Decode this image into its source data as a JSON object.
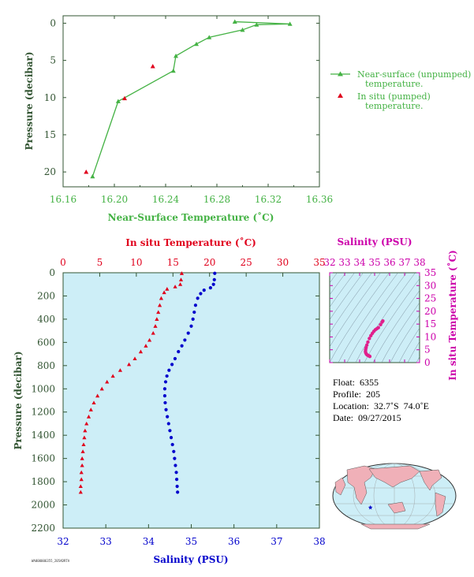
{
  "colors": {
    "green": "#44b244",
    "red": "#e0001c",
    "blue": "#0000cc",
    "magenta": "#cc00aa",
    "axis_text": "#335533",
    "panel_bg": "#cdeef7",
    "land": "#f0b0b8"
  },
  "chart_data": [
    {
      "id": "near-surface",
      "type": "scatter",
      "xlabel": "Near-Surface Temperature (˚C)",
      "ylabel": "Pressure (decibar)",
      "xlim": [
        16.16,
        16.36
      ],
      "ylim": [
        22,
        -1
      ],
      "xticks": [
        "16.16",
        "16.20",
        "16.24",
        "16.28",
        "16.32",
        "16.36"
      ],
      "yticks": [
        "0",
        "5",
        "10",
        "15",
        "20"
      ],
      "series": [
        {
          "name": "Near-surface (unpumped) temperature.",
          "style": "line+triangle",
          "color": "green",
          "points": [
            [
              16.294,
              -0.2
            ],
            [
              16.337,
              0.1
            ],
            [
              16.311,
              0.2
            ],
            [
              16.3,
              0.9
            ],
            [
              16.274,
              1.9
            ],
            [
              16.264,
              2.8
            ],
            [
              16.248,
              4.4
            ],
            [
              16.246,
              6.4
            ],
            [
              16.203,
              10.5
            ],
            [
              16.183,
              20.6
            ]
          ]
        },
        {
          "name": "In situ (pumped) temperature.",
          "style": "triangle",
          "color": "red",
          "points": [
            [
              16.23,
              5.8
            ],
            [
              16.208,
              10.1
            ],
            [
              16.178,
              20.0
            ]
          ]
        }
      ],
      "legend_position": "right"
    },
    {
      "id": "profile",
      "type": "scatter",
      "xlabel": "Salinity (PSU)",
      "x2label": "In situ Temperature (˚C)",
      "ylabel": "Pressure (decibar)",
      "xlim": [
        32,
        38
      ],
      "x2lim": [
        0,
        35
      ],
      "ylim": [
        2200,
        0
      ],
      "xticks": [
        "32",
        "33",
        "34",
        "35",
        "36",
        "37",
        "38"
      ],
      "x2ticks": [
        "0",
        "5",
        "10",
        "15",
        "20",
        "25",
        "30",
        "35"
      ],
      "yticks": [
        "0",
        "200",
        "400",
        "600",
        "800",
        "1000",
        "1200",
        "1400",
        "1600",
        "1800",
        "2000",
        "2200"
      ],
      "temperature": [
        [
          16.2,
          5
        ],
        [
          16.1,
          60
        ],
        [
          16.0,
          100
        ],
        [
          15.3,
          120
        ],
        [
          14.2,
          140
        ],
        [
          13.8,
          170
        ],
        [
          13.4,
          220
        ],
        [
          13.2,
          280
        ],
        [
          13.0,
          340
        ],
        [
          12.8,
          400
        ],
        [
          12.6,
          460
        ],
        [
          12.3,
          520
        ],
        [
          11.8,
          580
        ],
        [
          11.3,
          630
        ],
        [
          10.6,
          680
        ],
        [
          9.8,
          740
        ],
        [
          9.0,
          790
        ],
        [
          7.8,
          840
        ],
        [
          6.8,
          890
        ],
        [
          6.0,
          940
        ],
        [
          5.3,
          1000
        ],
        [
          4.7,
          1060
        ],
        [
          4.2,
          1120
        ],
        [
          3.8,
          1180
        ],
        [
          3.5,
          1240
        ],
        [
          3.2,
          1300
        ],
        [
          3.0,
          1360
        ],
        [
          2.9,
          1420
        ],
        [
          2.8,
          1480
        ],
        [
          2.7,
          1540
        ],
        [
          2.6,
          1600
        ],
        [
          2.6,
          1660
        ],
        [
          2.5,
          1720
        ],
        [
          2.5,
          1780
        ],
        [
          2.4,
          1840
        ],
        [
          2.4,
          1890
        ]
      ],
      "salinity": [
        [
          35.55,
          5
        ],
        [
          35.54,
          60
        ],
        [
          35.52,
          100
        ],
        [
          35.45,
          130
        ],
        [
          35.3,
          150
        ],
        [
          35.22,
          180
        ],
        [
          35.15,
          220
        ],
        [
          35.1,
          280
        ],
        [
          35.07,
          340
        ],
        [
          35.04,
          400
        ],
        [
          35.0,
          460
        ],
        [
          34.93,
          520
        ],
        [
          34.85,
          580
        ],
        [
          34.78,
          630
        ],
        [
          34.7,
          680
        ],
        [
          34.62,
          740
        ],
        [
          34.55,
          790
        ],
        [
          34.48,
          840
        ],
        [
          34.43,
          890
        ],
        [
          34.4,
          940
        ],
        [
          34.38,
          1000
        ],
        [
          34.38,
          1060
        ],
        [
          34.39,
          1120
        ],
        [
          34.41,
          1180
        ],
        [
          34.44,
          1240
        ],
        [
          34.47,
          1300
        ],
        [
          34.5,
          1360
        ],
        [
          34.53,
          1420
        ],
        [
          34.56,
          1480
        ],
        [
          34.59,
          1540
        ],
        [
          34.61,
          1600
        ],
        [
          34.63,
          1660
        ],
        [
          34.65,
          1720
        ],
        [
          34.66,
          1780
        ],
        [
          34.67,
          1840
        ],
        [
          34.68,
          1890
        ]
      ]
    },
    {
      "id": "ts-diagram",
      "type": "scatter",
      "xlabel": "Salinity (PSU)",
      "ylabel": "In situ Temperature (˚C)",
      "xlim": [
        32,
        38
      ],
      "ylim": [
        0,
        35
      ],
      "xticks": [
        "32",
        "33",
        "34",
        "35",
        "36",
        "37",
        "38"
      ],
      "yticks": [
        "0",
        "5",
        "10",
        "15",
        "20",
        "25",
        "30",
        "35"
      ],
      "points": [
        [
          35.55,
          16.2
        ],
        [
          35.5,
          15.8
        ],
        [
          35.4,
          14.8
        ],
        [
          35.25,
          13.6
        ],
        [
          35.15,
          13.2
        ],
        [
          35.05,
          12.8
        ],
        [
          34.95,
          12.2
        ],
        [
          34.85,
          11.4
        ],
        [
          34.75,
          10.5
        ],
        [
          34.65,
          9.4
        ],
        [
          34.55,
          8.0
        ],
        [
          34.48,
          6.8
        ],
        [
          34.43,
          5.8
        ],
        [
          34.4,
          5.0
        ],
        [
          34.39,
          4.3
        ],
        [
          34.41,
          3.8
        ],
        [
          34.45,
          3.3
        ],
        [
          34.5,
          3.0
        ],
        [
          34.55,
          2.8
        ],
        [
          34.6,
          2.7
        ],
        [
          34.65,
          2.5
        ],
        [
          34.68,
          2.4
        ]
      ]
    }
  ],
  "info": {
    "float": "Float:  6355",
    "profile": "Profile:  205",
    "location": "Location:  32.7˚S  74.0˚E",
    "date": "Date:  09/27/2015"
  },
  "map": {
    "marker_lon": 74.0,
    "marker_lat": -32.7
  },
  "footer_code": "WA000006355_205ADRTA"
}
